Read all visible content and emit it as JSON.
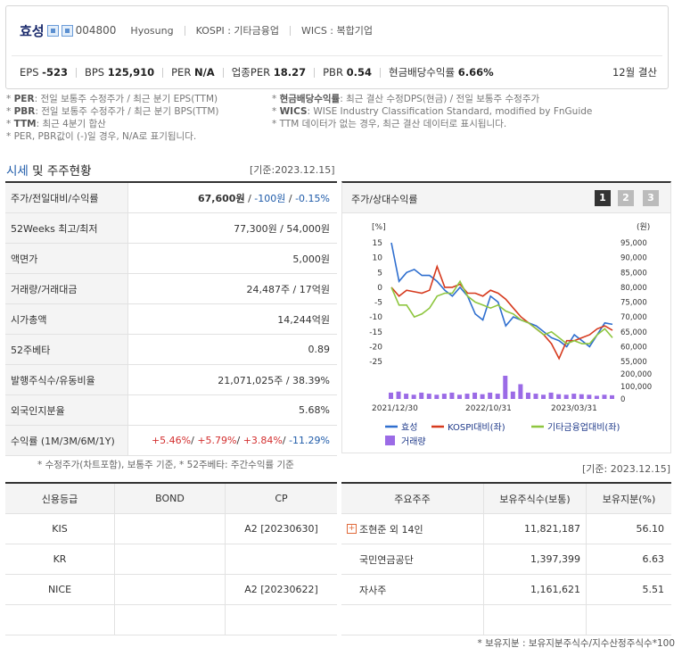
{
  "header": {
    "company": "효성",
    "code": "004800",
    "english": "Hyosung",
    "kospi": "KOSPI : 기타금융업",
    "wics": "WICS : 복합기업",
    "settle": "12월 결산",
    "metrics": [
      {
        "label": "EPS",
        "value": "-523"
      },
      {
        "label": "BPS",
        "value": "125,910"
      },
      {
        "label": "PER",
        "value": "N/A"
      },
      {
        "label": "업종PER",
        "value": "18.27"
      },
      {
        "label": "PBR",
        "value": "0.54"
      },
      {
        "label": "현금배당수익률",
        "value": "6.66%"
      }
    ]
  },
  "notes": {
    "left": [
      {
        "k": "PER",
        "v": ": 전일 보통주 수정주가 / 최근 분기 EPS(TTM)"
      },
      {
        "k": "PBR",
        "v": ": 전일 보통주 수정주가 / 최근 분기 BPS(TTM)"
      },
      {
        "k": "TTM",
        "v": ": 최근 4분기 합산"
      },
      {
        "k": "",
        "v": "PER, PBR값이 (-)일 경우, N/A로 표기됩니다."
      }
    ],
    "right": [
      {
        "k": "현금배당수익률",
        "v": ": 최근 결산 수정DPS(현금) / 전일 보통주 수정주가"
      },
      {
        "k": "WICS",
        "v": ": WISE Industry Classification Standard, modified by FnGuide"
      },
      {
        "k": "",
        "v": "TTM 데이터가 없는 경우, 최근 결산 데이터로 표시됩니다."
      }
    ]
  },
  "section": {
    "title_hl": "시세",
    "title_rest": " 및 주주현황",
    "date": "[기준:2023.12.15]"
  },
  "price_table": [
    {
      "label": "주가/전일대비/수익률",
      "price": "67,600원",
      "chg": "-100원",
      "pct": "-0.15%"
    },
    {
      "label": "52Weeks 최고/최저",
      "value": "77,300원 / 54,000원"
    },
    {
      "label": "액면가",
      "value": "5,000원"
    },
    {
      "label": "거래량/거래대금",
      "value": "24,487주 / 17억원"
    },
    {
      "label": "시가총액",
      "value": "14,244억원"
    },
    {
      "label": "52주베타",
      "value": "0.89"
    },
    {
      "label": "발행주식수/유동비율",
      "value": "21,071,025주 / 38.39%"
    },
    {
      "label": "외국인지분율",
      "value": "5.68%"
    },
    {
      "label": "수익률 (1M/3M/6M/1Y)",
      "r1": "+5.46%",
      "r2": "+5.79%",
      "r3": "+3.84%",
      "r4": "-11.29%"
    }
  ],
  "left_note": "* 수정주가(차트포함), 보통주 기준, * 52주베타: 주간수익률 기준",
  "chart_panel": {
    "title": "주가/상대수익률",
    "pages": [
      "1",
      "2",
      "3"
    ],
    "right_date": "[기준: 2023.12.15]"
  },
  "chart_data": {
    "type": "line",
    "x_labels": [
      "2021/12/30",
      "2022/10/31",
      "2023/03/31"
    ],
    "left_axis_unit": "[%]",
    "right_axis_unit": "(원)",
    "left_ticks": [
      15,
      10,
      5,
      0,
      -5,
      -10,
      -15,
      -20,
      -25
    ],
    "right_ticks": [
      "95,000",
      "90,000",
      "85,000",
      "80,000",
      "75,000",
      "70,000",
      "65,000",
      "60,000",
      "55,000"
    ],
    "volume_ticks": [
      "200,000",
      "100,000",
      "0"
    ],
    "ylim_left": [
      -25,
      15
    ],
    "series": [
      {
        "name": "효성",
        "color": "#2f6fcf",
        "values": [
          15,
          2,
          5,
          6,
          4,
          4,
          2,
          -1,
          -3,
          0,
          -3,
          -9,
          -11,
          -3,
          -5,
          -13,
          -10,
          -11,
          -12,
          -13,
          -15,
          -17,
          -18,
          -20,
          -16,
          -18,
          -20,
          -16,
          -12,
          -12.5
        ]
      },
      {
        "name": "KOSPI대비(좌)",
        "color": "#d63a1e",
        "values": [
          0,
          -3,
          -1,
          -1.5,
          -2,
          -1,
          7,
          0,
          0,
          1,
          -2,
          -2,
          -3,
          -1,
          -2,
          -4,
          -7,
          -10,
          -12,
          -14,
          -16,
          -19,
          -24,
          -18,
          -18,
          -17,
          -16,
          -14,
          -13,
          -14.5
        ]
      },
      {
        "name": "기타금융업대비(좌)",
        "color": "#8ec63f",
        "values": [
          0,
          -6,
          -6,
          -10,
          -9,
          -7,
          -3,
          -2,
          -2,
          2,
          -3,
          -5,
          -6,
          -7,
          -6,
          -8,
          -9,
          -11,
          -12,
          -14,
          -16,
          -15,
          -17,
          -19,
          -18,
          -19,
          -19,
          -16,
          -14,
          -17
        ]
      },
      {
        "name": "거래량",
        "color": "#9b6be6",
        "values": [
          60000,
          70000,
          50000,
          40000,
          60000,
          50000,
          40000,
          50000,
          60000,
          40000,
          50000,
          60000,
          45000,
          60000,
          50000,
          220000,
          70000,
          140000,
          60000,
          50000,
          40000,
          60000,
          45000,
          40000,
          50000,
          45000,
          40000,
          30000,
          40000,
          35000
        ]
      }
    ]
  },
  "credit_table": {
    "headers": [
      "신용등급",
      "BOND",
      "CP"
    ],
    "rows": [
      [
        "KIS",
        "",
        "A2 [20230630]"
      ],
      [
        "KR",
        "",
        ""
      ],
      [
        "NICE",
        "",
        "A2 [20230622]"
      ],
      [
        "",
        "",
        ""
      ]
    ]
  },
  "holders_table": {
    "headers": [
      "주요주주",
      "보유주식수(보통)",
      "보유지분(%)"
    ],
    "rows": [
      {
        "name": "조현준 외 14인",
        "shares": "11,821,187",
        "pct": "56.10",
        "expand": true
      },
      {
        "name": "국민연금공단",
        "shares": "1,397,399",
        "pct": "6.63",
        "expand": false
      },
      {
        "name": "자사주",
        "shares": "1,161,621",
        "pct": "5.51",
        "expand": false
      },
      {
        "name": "",
        "shares": "",
        "pct": "",
        "expand": false
      }
    ],
    "note": "* 보유지분 : 보유지분주식수/지수산정주식수*100"
  }
}
